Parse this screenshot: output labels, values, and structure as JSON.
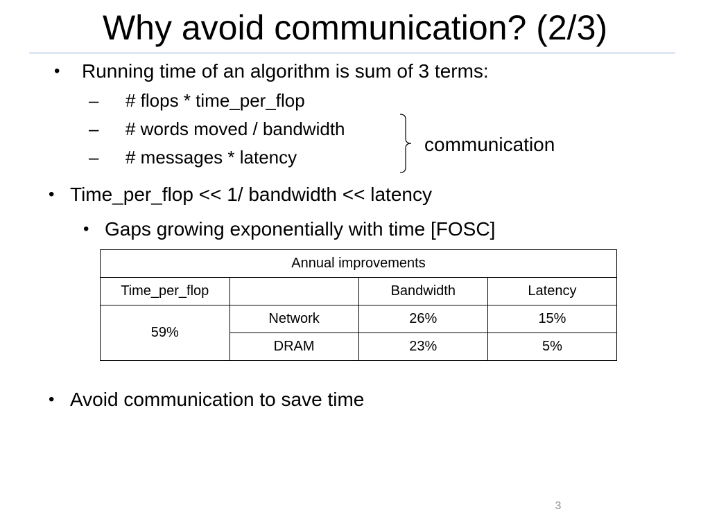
{
  "slide": {
    "title": "Why avoid communication? (2/3)",
    "page_number": "3"
  },
  "bullets": {
    "running_time": {
      "marker": "•",
      "text": "Running time of an algorithm is sum of 3 terms:",
      "terms": [
        {
          "marker": "–",
          "text": "# flops * time_per_flop"
        },
        {
          "marker": "–",
          "text": "# words moved / bandwidth"
        },
        {
          "marker": "–",
          "text": "# messages * latency"
        }
      ],
      "brace_label": "communication"
    },
    "ordering": {
      "marker": "•",
      "text": "Time_per_flop  <<  1/ bandwidth  <<  latency",
      "sub": {
        "marker": "•",
        "text": "Gaps growing exponentially with time [FOSC]"
      }
    },
    "conclusion": {
      "marker": "•",
      "text": "Avoid communication to save time"
    }
  },
  "table": {
    "caption": "Annual improvements",
    "headers": [
      "Time_per_flop",
      "",
      "Bandwidth",
      "Latency"
    ],
    "time_per_flop": "59%",
    "rows": [
      {
        "label": "Network",
        "bandwidth": "26%",
        "latency": "15%"
      },
      {
        "label": "DRAM",
        "bandwidth": "23%",
        "latency": "5%"
      }
    ]
  },
  "colors": {
    "title_rule": "#8eaadb",
    "page_number": "#8c8c8c"
  }
}
